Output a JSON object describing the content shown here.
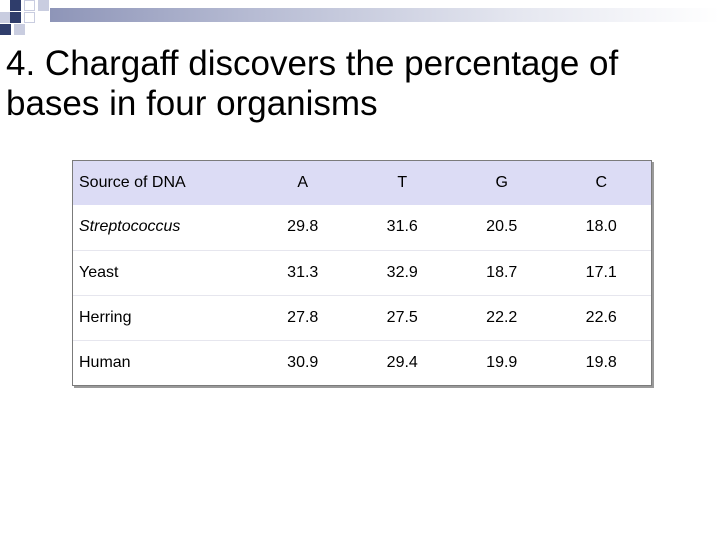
{
  "slide": {
    "title": "4. Chargaff discovers the percentage of bases in four organisms"
  },
  "colors": {
    "header_bg": "#dcdcf5",
    "accent_dark": "#2f3d6b",
    "accent_light": "#c9cde0"
  },
  "table": {
    "headers": [
      "Source of DNA",
      "A",
      "T",
      "G",
      "C"
    ],
    "rows": [
      {
        "source": "Streptococcus",
        "italic": true,
        "values": [
          "29.8",
          "31.6",
          "20.5",
          "18.0"
        ]
      },
      {
        "source": "Yeast",
        "italic": false,
        "values": [
          "31.3",
          "32.9",
          "18.7",
          "17.1"
        ]
      },
      {
        "source": "Herring",
        "italic": false,
        "values": [
          "27.8",
          "27.5",
          "22.2",
          "22.6"
        ]
      },
      {
        "source": "Human",
        "italic": false,
        "values": [
          "30.9",
          "29.4",
          "19.9",
          "19.8"
        ]
      }
    ]
  }
}
